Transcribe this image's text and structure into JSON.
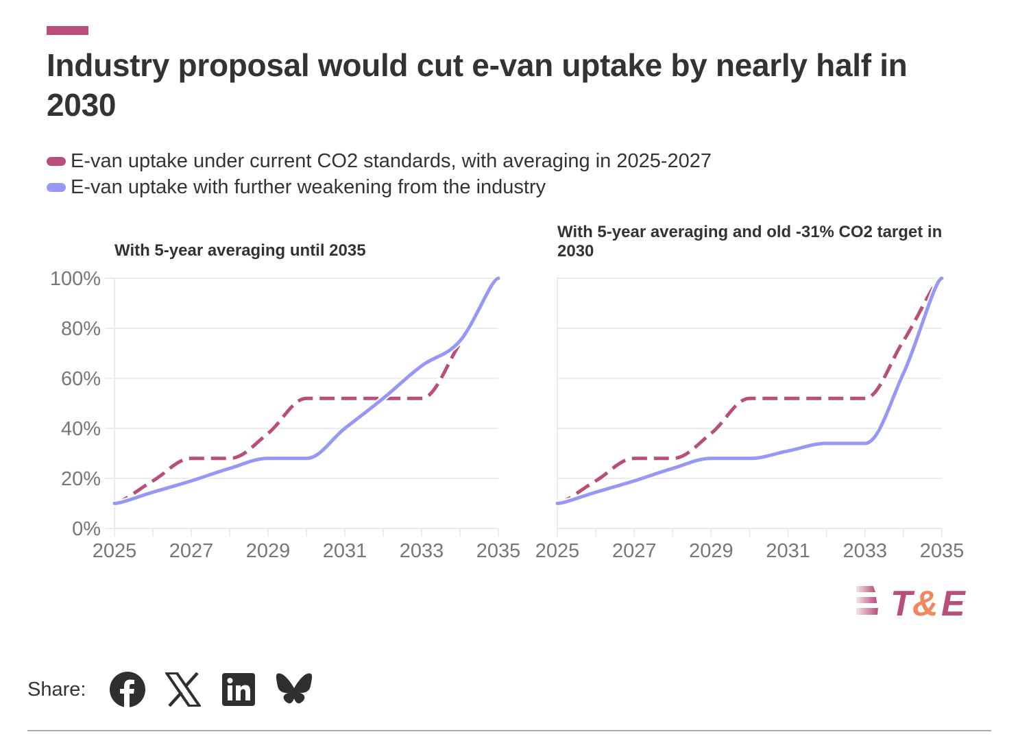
{
  "header": {
    "title": "Industry proposal would cut e-van uptake by nearly half in 2030"
  },
  "legend": [
    {
      "label": "E-van uptake under current CO2 standards, with averaging in 2025-2027",
      "color": "#b74f7a",
      "style": "dashed"
    },
    {
      "label": "E-van uptake with further weakening from the industry",
      "color": "#9797f8",
      "style": "solid"
    }
  ],
  "chart_data": [
    {
      "type": "line",
      "title": "With 5-year averaging until 2035",
      "xlabel": "",
      "ylabel": "",
      "x": [
        2025,
        2026,
        2027,
        2028,
        2029,
        2030,
        2031,
        2032,
        2033,
        2034,
        2035
      ],
      "x_tick_labels": [
        "2025",
        "2027",
        "2029",
        "2031",
        "2033",
        "2035"
      ],
      "y_tick_labels": [
        "0%",
        "20%",
        "40%",
        "60%",
        "80%",
        "100%"
      ],
      "ylim": [
        0,
        100
      ],
      "grid": true,
      "series": [
        {
          "name": "E-van uptake under current CO2 standards, with averaging in 2025-2027",
          "values": [
            10,
            19,
            28,
            28,
            38,
            52,
            52,
            52,
            52,
            74,
            100
          ]
        },
        {
          "name": "E-van uptake with further weakening from the industry",
          "values": [
            10,
            14.5,
            19,
            24,
            28,
            28,
            40,
            52,
            65,
            75,
            100
          ]
        }
      ]
    },
    {
      "type": "line",
      "title": "With 5-year averaging and old -31% CO2 target in 2030",
      "xlabel": "",
      "ylabel": "",
      "x": [
        2025,
        2026,
        2027,
        2028,
        2029,
        2030,
        2031,
        2032,
        2033,
        2034,
        2035
      ],
      "x_tick_labels": [
        "2025",
        "2027",
        "2029",
        "2031",
        "2033",
        "2035"
      ],
      "y_tick_labels": [
        "0%",
        "20%",
        "40%",
        "60%",
        "80%",
        "100%"
      ],
      "ylim": [
        0,
        100
      ],
      "grid": true,
      "series": [
        {
          "name": "E-van uptake under current CO2 standards, with averaging in 2025-2027",
          "values": [
            10,
            19,
            28,
            28,
            38,
            52,
            52,
            52,
            52,
            75,
            100
          ]
        },
        {
          "name": "E-van uptake with further weakening from the industry",
          "values": [
            10,
            14.5,
            19,
            24,
            28,
            28,
            31,
            34,
            34,
            62,
            100
          ]
        }
      ]
    }
  ],
  "branding": {
    "logo_text": "T&E",
    "logo_t": "T",
    "logo_amp": "&",
    "logo_e": "E",
    "primary_color": "#b74f7a",
    "secondary_color": "#f0885f"
  },
  "share": {
    "label": "Share:",
    "icons": [
      "facebook-icon",
      "x-icon",
      "linkedin-icon",
      "bluesky-icon"
    ]
  }
}
